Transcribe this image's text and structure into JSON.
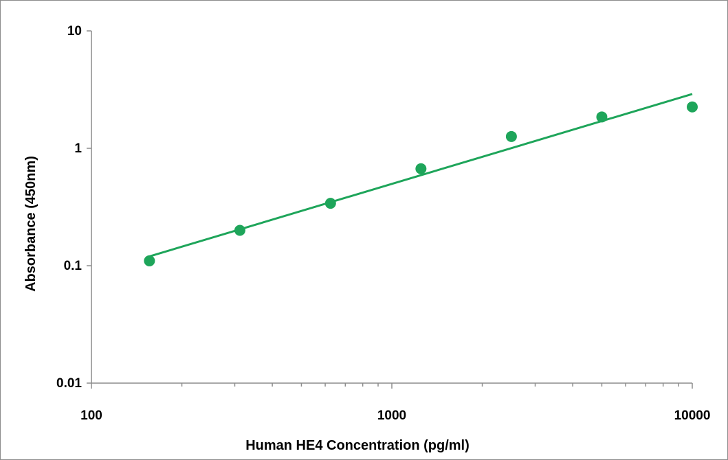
{
  "chart_data": {
    "type": "scatter",
    "title": "",
    "xlabel": "Human HE4 Concentration (pg/ml)",
    "ylabel": "Absorbance (450nm)",
    "x_scale": "log",
    "y_scale": "log",
    "xlim": [
      100,
      10000
    ],
    "ylim": [
      0.01,
      10
    ],
    "x_ticks": [
      "100",
      "1000",
      "10000"
    ],
    "y_ticks": [
      "0.01",
      "0.1",
      "1",
      "10"
    ],
    "grid": false,
    "legend": "none",
    "series": [
      {
        "points": [
          {
            "x": 156,
            "y": 0.11
          },
          {
            "x": 312,
            "y": 0.2
          },
          {
            "x": 625,
            "y": 0.34
          },
          {
            "x": 1250,
            "y": 0.67
          },
          {
            "x": 2500,
            "y": 1.26
          },
          {
            "x": 5000,
            "y": 1.85
          },
          {
            "x": 10000,
            "y": 2.25
          }
        ],
        "color": "#1ea55a"
      }
    ],
    "trendline": {
      "type": "power",
      "points": [
        {
          "x": 156,
          "y": 0.12
        },
        {
          "x": 10000,
          "y": 2.9
        }
      ],
      "color": "#1ea55a"
    }
  }
}
